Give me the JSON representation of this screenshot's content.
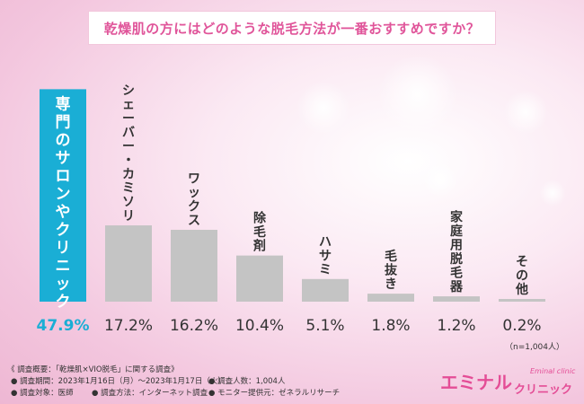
{
  "title": "乾燥肌の方にはどのような脱毛方法が一番おすすめですか？",
  "chart_data": {
    "type": "bar",
    "categories": [
      "専門のサロンやクリニック",
      "シェーバー・カミソリ",
      "ワックス",
      "除毛剤",
      "ハサミ",
      "毛抜き",
      "家庭用脱毛器",
      "その他"
    ],
    "values": [
      47.9,
      17.2,
      16.2,
      10.4,
      5.1,
      1.8,
      1.2,
      0.2
    ],
    "value_labels": [
      "47.9%",
      "17.2%",
      "16.2%",
      "10.4%",
      "5.1%",
      "1.8%",
      "1.2%",
      "0.2%"
    ],
    "ylim": [
      0,
      50
    ],
    "grid": false,
    "highlight_color": "#1aaed5",
    "bar_color": "#c4c4c4",
    "highlight_text_color": "#ffffff",
    "label_color": "#333333"
  },
  "sample_size": "（n=1,004人）",
  "notes": {
    "header": "《 調査概要：「乾燥肌×VIO脱毛」に関する調査》",
    "period": "調査期間：2023年1月16日（月）～2023年1月17日（火）",
    "count": "調査人数：1,004人",
    "target": "調査対象：医師",
    "method": "調査方法：インターネット調査",
    "provider": "モニター提供元：ゼネラルリサーチ"
  },
  "logo": {
    "main": "エミナル",
    "sub": "クリニック",
    "en": "Eminal clinic"
  }
}
